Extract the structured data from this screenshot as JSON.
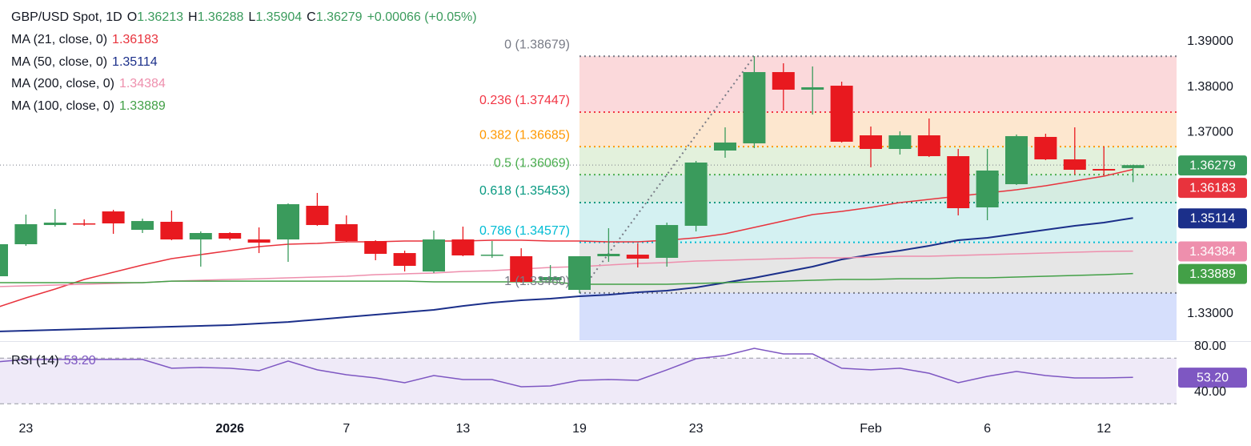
{
  "chart_data": [
    {
      "type": "candlestick",
      "title": "GBP/USD Spot, 1D",
      "ohlc_labels": [
        "O",
        "H",
        "L",
        "C"
      ],
      "change_label": "+0.00066 (+0.05%)",
      "categories": [
        null,
        "23",
        null,
        null,
        null,
        null,
        null,
        null,
        "2026",
        null,
        null,
        null,
        "7",
        null,
        null,
        null,
        "13",
        null,
        null,
        null,
        "19",
        null,
        null,
        null,
        "23",
        null,
        null,
        null,
        null,
        null,
        "Feb",
        null,
        null,
        null,
        "6",
        null,
        null,
        null,
        "12",
        null
      ],
      "open": [
        1.33829,
        1.34535,
        1.34958,
        1.34994,
        1.35258,
        1.34852,
        1.35029,
        1.3464,
        1.34782,
        1.3464,
        1.3464,
        1.35382,
        1.34976,
        1.34605,
        1.3434,
        1.33934,
        1.3464,
        1.34288,
        1.3427,
        1.3374,
        1.33529,
        1.3427,
        1.34305,
        1.34235,
        1.34941,
        1.366,
        1.36758,
        1.38329,
        1.37941,
        1.38029,
        1.36935,
        1.36635,
        1.36935,
        1.36476,
        1.35347,
        1.35858,
        1.369,
        1.36405,
        1.36194,
        1.36213
      ],
      "high": [
        1.34553,
        1.35188,
        1.35311,
        1.35082,
        1.35293,
        1.35099,
        1.35276,
        1.34817,
        1.34799,
        1.34905,
        1.35435,
        1.35665,
        1.3517,
        1.34623,
        1.34393,
        1.34835,
        1.34923,
        1.34605,
        1.34446,
        1.34076,
        1.3427,
        1.34888,
        1.34552,
        1.35011,
        1.3637,
        1.37111,
        1.38679,
        1.38523,
        1.38453,
        1.38118,
        1.37129,
        1.37023,
        1.37306,
        1.36635,
        1.36635,
        1.36953,
        1.3697,
        1.37111,
        1.36688,
        1.36288
      ],
      "low": [
        1.33652,
        1.345,
        1.34923,
        1.34941,
        1.34764,
        1.34782,
        1.34623,
        1.34041,
        1.34623,
        1.3434,
        1.34146,
        1.34941,
        1.34588,
        1.34182,
        1.33934,
        1.33899,
        1.3427,
        1.34235,
        1.33688,
        1.33723,
        1.3346,
        1.34146,
        1.34023,
        1.34041,
        1.34817,
        1.36441,
        1.36653,
        1.37482,
        1.37394,
        1.36776,
        1.36229,
        1.36511,
        1.36458,
        1.3517,
        1.35064,
        1.35841,
        1.36388,
        1.3607,
        1.36053,
        1.35904
      ],
      "close": [
        1.34535,
        1.34976,
        1.35011,
        1.34976,
        1.34994,
        1.35046,
        1.3464,
        1.34782,
        1.34658,
        1.3457,
        1.35417,
        1.34958,
        1.34605,
        1.34323,
        1.34058,
        1.3464,
        1.34288,
        1.34305,
        1.33705,
        1.33811,
        1.3427,
        1.34323,
        1.34217,
        1.34958,
        1.36335,
        1.36776,
        1.38329,
        1.37941,
        1.37994,
        1.36794,
        1.36635,
        1.36935,
        1.36476,
        1.35329,
        1.36159,
        1.36917,
        1.36405,
        1.36176,
        1.36159,
        1.36279
      ],
      "up_color": "#3a9b5c",
      "down_color": "#e8191f",
      "ylim": [
        1.32417,
        1.39918
      ],
      "yticks": [
        {
          "value": 1.33,
          "label": "1.33000"
        },
        {
          "value": 1.37,
          "label": "1.37000"
        },
        {
          "value": 1.38,
          "label": "1.38000"
        },
        {
          "value": 1.39,
          "label": "1.39000"
        }
      ],
      "series": [
        {
          "name": "MA (21, close, 0)",
          "color": "#e8333d",
          "values": [
            1.3314,
            1.33352,
            1.33546,
            1.33758,
            1.33917,
            1.34076,
            1.34217,
            1.34305,
            1.34393,
            1.34482,
            1.34535,
            1.34552,
            1.34587,
            1.34587,
            1.34605,
            1.34605,
            1.34605,
            1.34623,
            1.34623,
            1.34605,
            1.34605,
            1.34587,
            1.34587,
            1.34623,
            1.34676,
            1.34764,
            1.34905,
            1.35046,
            1.35188,
            1.35258,
            1.35346,
            1.35452,
            1.35523,
            1.35594,
            1.35664,
            1.35735,
            1.35823,
            1.35929,
            1.36035,
            1.36183
          ]
        },
        {
          "name": "MA (50, close, 0)",
          "color": "#1b2f8a",
          "values": [
            1.32611,
            1.32628,
            1.32646,
            1.32664,
            1.32681,
            1.32699,
            1.32717,
            1.32734,
            1.32752,
            1.32787,
            1.32822,
            1.32875,
            1.32928,
            1.32981,
            1.33034,
            1.33087,
            1.33175,
            1.33246,
            1.33299,
            1.33334,
            1.33387,
            1.33422,
            1.33476,
            1.33511,
            1.33581,
            1.33687,
            1.33793,
            1.33917,
            1.3404,
            1.34199,
            1.34305,
            1.34393,
            1.34499,
            1.34623,
            1.34676,
            1.34764,
            1.34852,
            1.3494,
            1.35011,
            1.35114
          ]
        },
        {
          "name": "MA (200, close, 0)",
          "color": "#ee8fad",
          "values": [
            1.33599,
            1.33617,
            1.33634,
            1.33652,
            1.3367,
            1.33687,
            1.33722,
            1.3374,
            1.33758,
            1.33775,
            1.33793,
            1.33811,
            1.33829,
            1.33864,
            1.33882,
            1.33899,
            1.33935,
            1.33952,
            1.33987,
            1.34023,
            1.3404,
            1.34076,
            1.34111,
            1.34129,
            1.34164,
            1.34182,
            1.342,
            1.34217,
            1.34235,
            1.34235,
            1.34253,
            1.3427,
            1.3427,
            1.34288,
            1.34305,
            1.34323,
            1.34341,
            1.34358,
            1.34376,
            1.34384
          ]
        },
        {
          "name": "MA (100, close, 0)",
          "color": "#43a047",
          "values": [
            1.33687,
            1.33687,
            1.33687,
            1.33687,
            1.33687,
            1.33687,
            1.33722,
            1.33722,
            1.33722,
            1.33722,
            1.33722,
            1.33722,
            1.33722,
            1.33722,
            1.33722,
            1.33705,
            1.33705,
            1.33705,
            1.33705,
            1.33705,
            1.33652,
            1.33652,
            1.33652,
            1.33652,
            1.3367,
            1.33687,
            1.33705,
            1.33722,
            1.3374,
            1.33758,
            1.33758,
            1.33775,
            1.33775,
            1.33793,
            1.33793,
            1.33811,
            1.33829,
            1.33846,
            1.33864,
            1.33889
          ]
        }
      ],
      "fibonacci": {
        "start_index": 20,
        "end_index": 26,
        "trend_color": "#787b86",
        "levels": [
          {
            "value": 1.38679,
            "label": "0 (1.38679)",
            "color": "#787b86",
            "fill": "#fbd9db"
          },
          {
            "value": 1.37447,
            "label": "0.236 (1.37447)",
            "color": "#f23645",
            "fill": "#fde7cf"
          },
          {
            "value": 1.36685,
            "label": "0.382 (1.36685)",
            "color": "#ff9800",
            "fill": "#e3f1dc"
          },
          {
            "value": 1.36069,
            "label": "0.5 (1.36069)",
            "color": "#4caf50",
            "fill": "#d5ece1"
          },
          {
            "value": 1.35453,
            "label": "0.618 (1.35453)",
            "color": "#089981",
            "fill": "#d4f1f2"
          },
          {
            "value": 1.34577,
            "label": "0.786 (1.34577)",
            "color": "#00bcd4",
            "fill": "#e6e6e6"
          },
          {
            "value": 1.3346,
            "label": "1 (1.33460)",
            "color": "#787b86",
            "fill": "#d6dffc"
          }
        ]
      }
    },
    {
      "type": "line",
      "series": [
        {
          "name": "RSI (14)",
          "color": "#7e57c2",
          "last_value_label": "53.20",
          "values": [
            66.7,
            68.8,
            68.8,
            68.8,
            68.8,
            68.8,
            61.1,
            61.8,
            61.1,
            59.0,
            67.4,
            59.7,
            55.4,
            52.6,
            48.4,
            54.7,
            51.2,
            51.2,
            44.9,
            45.6,
            50.5,
            51.2,
            50.5,
            59.7,
            69.5,
            72.3,
            78.6,
            73.7,
            73.7,
            61.1,
            59.7,
            61.1,
            56.8,
            48.4,
            54.0,
            58.3,
            54.7,
            52.6,
            52.6,
            53.2
          ]
        }
      ],
      "ylim": [
        21.75,
        83.5
      ],
      "yticks": [
        {
          "value": 80,
          "label": "80.00"
        },
        {
          "value": 40,
          "label": "40.00"
        }
      ],
      "levels": [
        30,
        70
      ],
      "band_fill": "#efeaf8"
    }
  ]
}
